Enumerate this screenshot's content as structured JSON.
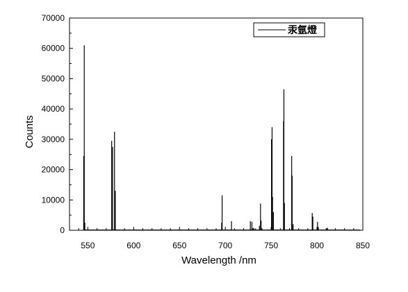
{
  "chart_data": {
    "type": "line",
    "title": "",
    "xlabel": "Wavelength /nm",
    "ylabel": "Counts",
    "xlim": [
      530,
      850
    ],
    "ylim": [
      0,
      70000
    ],
    "xticks": [
      550,
      600,
      650,
      700,
      750,
      800,
      850
    ],
    "yticks": [
      0,
      10000,
      20000,
      30000,
      40000,
      50000,
      60000,
      70000
    ],
    "xtick_labels": [
      "550",
      "600",
      "650",
      "700",
      "750",
      "800",
      "850"
    ],
    "ytick_labels": [
      "0",
      "10000",
      "20000",
      "30000",
      "40000",
      "50000",
      "60000",
      "70000"
    ],
    "grid": false,
    "legend_position": "top-right",
    "line_color": "#000000",
    "series": [
      {
        "name": "汞氩燈",
        "peaks": [
          [
            545.5,
            24500
          ],
          [
            546.1,
            61000
          ],
          [
            546.7,
            2500
          ],
          [
            576.0,
            29500
          ],
          [
            577.0,
            27500
          ],
          [
            579.1,
            32500
          ],
          [
            580.0,
            13000
          ],
          [
            696.5,
            11500
          ],
          [
            696.0,
            2500
          ],
          [
            706.7,
            3000
          ],
          [
            727.3,
            3000
          ],
          [
            729.0,
            2800
          ],
          [
            731.0,
            800
          ],
          [
            733.0,
            600
          ],
          [
            737.2,
            1500
          ],
          [
            738.4,
            8800
          ],
          [
            739.0,
            3200
          ],
          [
            750.4,
            30000
          ],
          [
            751.0,
            34000
          ],
          [
            751.5,
            11000
          ],
          [
            752.5,
            6000
          ],
          [
            763.5,
            36000
          ],
          [
            763.9,
            46500
          ],
          [
            764.5,
            9000
          ],
          [
            772.4,
            24500
          ],
          [
            772.9,
            18000
          ],
          [
            774.0,
            2000
          ],
          [
            794.8,
            5700
          ],
          [
            795.5,
            4500
          ],
          [
            800.6,
            2800
          ],
          [
            801.5,
            1000
          ],
          [
            810.4,
            600
          ],
          [
            811.5,
            800
          ]
        ]
      }
    ]
  }
}
